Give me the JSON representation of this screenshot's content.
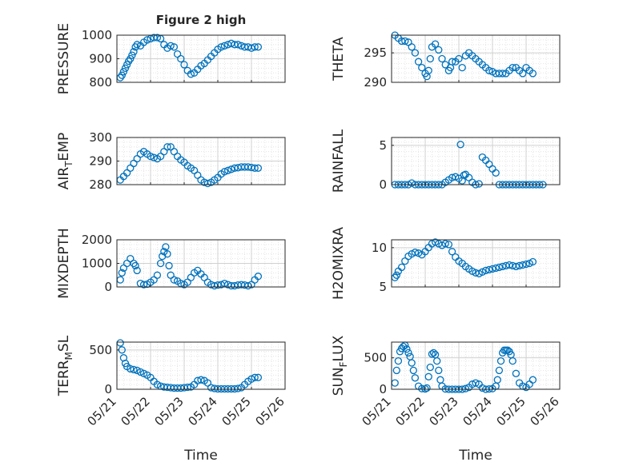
{
  "figure_title": "Figure 2 high",
  "xlabel": "Time",
  "xtick_labels": [
    "05/21",
    "05/22",
    "05/23",
    "05/24",
    "05/25",
    "05/26"
  ],
  "colors": {
    "marker": "#0072bd",
    "grid": "#dfdfdf",
    "axis": "#262626"
  },
  "chart_data": [
    {
      "type": "scatter",
      "ylabel": "PRESSURE",
      "ylim": [
        800,
        1000
      ],
      "yticks": [
        800,
        900,
        1000
      ],
      "xlim": [
        0,
        5
      ],
      "series": [
        {
          "x": [
            0.1,
            0.15,
            0.2,
            0.25,
            0.3,
            0.35,
            0.4,
            0.45,
            0.5,
            0.55,
            0.6,
            0.7,
            0.8,
            0.9,
            1.0,
            1.1,
            1.2,
            1.3,
            1.4,
            1.5,
            1.6,
            1.7,
            1.8,
            1.9,
            2.0,
            2.1,
            2.2,
            2.3,
            2.4,
            2.5,
            2.6,
            2.7,
            2.8,
            2.9,
            3.0,
            3.1,
            3.2,
            3.3,
            3.4,
            3.5,
            3.6,
            3.7,
            3.8,
            3.9,
            4.0,
            4.1,
            4.2
          ],
          "y": [
            820,
            830,
            845,
            860,
            875,
            890,
            900,
            915,
            930,
            950,
            960,
            955,
            970,
            980,
            985,
            990,
            990,
            985,
            960,
            945,
            955,
            950,
            920,
            900,
            875,
            850,
            835,
            840,
            855,
            870,
            880,
            895,
            910,
            925,
            940,
            950,
            955,
            960,
            965,
            960,
            960,
            955,
            950,
            950,
            945,
            950,
            950
          ]
        }
      ]
    },
    {
      "type": "scatter",
      "ylabel": "THETA",
      "ylim": [
        290,
        298
      ],
      "yticks": [
        290,
        295
      ],
      "xlim": [
        0,
        5
      ],
      "series": [
        {
          "x": [
            0.1,
            0.2,
            0.3,
            0.4,
            0.5,
            0.6,
            0.7,
            0.8,
            0.9,
            1.0,
            1.05,
            1.1,
            1.15,
            1.2,
            1.3,
            1.4,
            1.5,
            1.6,
            1.7,
            1.75,
            1.8,
            1.9,
            2.0,
            2.1,
            2.2,
            2.3,
            2.4,
            2.5,
            2.6,
            2.7,
            2.8,
            2.9,
            3.0,
            3.1,
            3.2,
            3.3,
            3.4,
            3.5,
            3.6,
            3.7,
            3.8,
            3.9,
            4.0,
            4.1,
            4.2
          ],
          "y": [
            298,
            297.5,
            297,
            297,
            296.8,
            296,
            295,
            293.5,
            292.5,
            291.5,
            291,
            292,
            294,
            296,
            296.5,
            295.5,
            294,
            293,
            292,
            292.5,
            293.5,
            293.5,
            294,
            292.5,
            294.5,
            295,
            294.5,
            294,
            293.5,
            293,
            292.5,
            292,
            291.8,
            291.5,
            291.5,
            291.5,
            291.5,
            292,
            292.5,
            292.5,
            292,
            291.5,
            292.5,
            292,
            291.5
          ]
        }
      ]
    },
    {
      "type": "scatter",
      "ylabel": "AIR_TEMP",
      "ylim": [
        280,
        300
      ],
      "yticks": [
        280,
        290,
        300
      ],
      "xlim": [
        0,
        5
      ],
      "series": [
        {
          "x": [
            0.1,
            0.2,
            0.3,
            0.4,
            0.5,
            0.6,
            0.7,
            0.8,
            0.9,
            1.0,
            1.1,
            1.2,
            1.3,
            1.4,
            1.5,
            1.6,
            1.7,
            1.8,
            1.9,
            2.0,
            2.1,
            2.2,
            2.3,
            2.4,
            2.5,
            2.6,
            2.7,
            2.8,
            2.9,
            3.0,
            3.1,
            3.2,
            3.3,
            3.4,
            3.5,
            3.6,
            3.7,
            3.8,
            3.9,
            4.0,
            4.1,
            4.2
          ],
          "y": [
            282,
            283.5,
            285,
            287,
            289,
            291,
            293,
            294,
            293,
            292,
            291.5,
            291,
            292,
            294,
            296,
            296,
            294,
            292,
            290.5,
            289.5,
            288,
            287,
            286,
            284,
            282,
            281,
            280.5,
            281,
            282,
            283,
            284.5,
            285.5,
            286,
            286.5,
            287,
            287.2,
            287.5,
            287.5,
            287.5,
            287.3,
            287,
            287
          ]
        }
      ]
    },
    {
      "type": "scatter",
      "ylabel": "RAINFALL",
      "ylim": [
        0,
        6
      ],
      "yticks": [
        0,
        5
      ],
      "xlim": [
        0,
        5
      ],
      "series": [
        {
          "x": [
            0.1,
            0.2,
            0.3,
            0.4,
            0.5,
            0.6,
            0.7,
            0.8,
            0.9,
            1.0,
            1.1,
            1.2,
            1.3,
            1.4,
            1.5,
            1.6,
            1.7,
            1.8,
            1.9,
            2.0,
            2.05,
            2.1,
            2.15,
            2.2,
            2.3,
            2.4,
            2.5,
            2.6,
            2.7,
            2.8,
            2.9,
            3.0,
            3.1,
            3.2,
            3.3,
            3.4,
            3.5,
            3.6,
            3.7,
            3.8,
            3.9,
            4.0,
            4.1,
            4.2,
            4.3,
            4.4,
            4.5
          ],
          "y": [
            0,
            0,
            0,
            0,
            0,
            0.2,
            0,
            0,
            0,
            0,
            0,
            0,
            0,
            0,
            0,
            0.3,
            0.6,
            0.9,
            1.0,
            0.8,
            5.1,
            0.5,
            1.2,
            1.3,
            0.9,
            0.3,
            0,
            0.1,
            3.5,
            3.1,
            2.6,
            2.0,
            1.5,
            0,
            0,
            0,
            0,
            0,
            0,
            0,
            0,
            0,
            0,
            0,
            0,
            0,
            0
          ]
        }
      ]
    },
    {
      "type": "scatter",
      "ylabel": "MIXDEPTH",
      "ylim": [
        0,
        2000
      ],
      "yticks": [
        0,
        1000,
        2000
      ],
      "xlim": [
        0,
        5
      ],
      "series": [
        {
          "x": [
            0.1,
            0.15,
            0.2,
            0.3,
            0.4,
            0.5,
            0.55,
            0.6,
            0.7,
            0.8,
            0.9,
            1.0,
            1.1,
            1.2,
            1.3,
            1.35,
            1.4,
            1.45,
            1.5,
            1.55,
            1.6,
            1.7,
            1.8,
            1.9,
            2.0,
            2.1,
            2.2,
            2.3,
            2.4,
            2.5,
            2.6,
            2.7,
            2.8,
            2.9,
            3.0,
            3.1,
            3.2,
            3.3,
            3.4,
            3.5,
            3.6,
            3.7,
            3.8,
            3.9,
            4.0,
            4.1,
            4.2
          ],
          "y": [
            300,
            600,
            800,
            1000,
            1200,
            1000,
            900,
            700,
            150,
            100,
            120,
            200,
            300,
            500,
            1000,
            1300,
            1500,
            1700,
            1400,
            900,
            500,
            300,
            250,
            150,
            100,
            200,
            400,
            600,
            700,
            550,
            400,
            200,
            100,
            50,
            80,
            100,
            150,
            100,
            50,
            50,
            80,
            100,
            80,
            50,
            100,
            300,
            450
          ]
        }
      ]
    },
    {
      "type": "scatter",
      "ylabel": "H2OMIXRA",
      "ylim": [
        5,
        11
      ],
      "yticks": [
        5,
        10
      ],
      "xlim": [
        0,
        5
      ],
      "series": [
        {
          "x": [
            0.1,
            0.15,
            0.2,
            0.3,
            0.4,
            0.5,
            0.6,
            0.7,
            0.8,
            0.9,
            1.0,
            1.1,
            1.2,
            1.3,
            1.4,
            1.5,
            1.6,
            1.7,
            1.8,
            1.9,
            2.0,
            2.1,
            2.2,
            2.3,
            2.4,
            2.5,
            2.6,
            2.7,
            2.8,
            2.9,
            3.0,
            3.1,
            3.2,
            3.3,
            3.4,
            3.5,
            3.6,
            3.7,
            3.8,
            3.9,
            4.0,
            4.1,
            4.2
          ],
          "y": [
            6.2,
            6.5,
            7.0,
            7.5,
            8.3,
            8.9,
            9.2,
            9.4,
            9.3,
            9.1,
            9.5,
            10.0,
            10.5,
            10.7,
            10.5,
            10.3,
            10.5,
            10.4,
            9.5,
            8.8,
            8.3,
            8.0,
            7.6,
            7.3,
            7.0,
            6.8,
            6.7,
            6.9,
            7.1,
            7.2,
            7.3,
            7.4,
            7.5,
            7.6,
            7.7,
            7.8,
            7.7,
            7.6,
            7.7,
            7.8,
            7.9,
            8.0,
            8.2
          ]
        }
      ]
    },
    {
      "type": "scatter",
      "ylabel": "TERR_MSL",
      "ylim": [
        0,
        600
      ],
      "yticks": [
        0,
        500
      ],
      "xlim": [
        0,
        5
      ],
      "series": [
        {
          "x": [
            0.1,
            0.15,
            0.2,
            0.25,
            0.3,
            0.4,
            0.5,
            0.6,
            0.7,
            0.8,
            0.9,
            1.0,
            1.1,
            1.2,
            1.3,
            1.4,
            1.5,
            1.6,
            1.7,
            1.8,
            1.9,
            2.0,
            2.1,
            2.2,
            2.3,
            2.4,
            2.5,
            2.6,
            2.7,
            2.8,
            2.9,
            3.0,
            3.1,
            3.2,
            3.3,
            3.4,
            3.5,
            3.6,
            3.7,
            3.8,
            3.9,
            4.0,
            4.1,
            4.2
          ],
          "y": [
            590,
            500,
            400,
            330,
            290,
            260,
            250,
            240,
            220,
            200,
            180,
            150,
            100,
            60,
            40,
            30,
            25,
            20,
            15,
            15,
            15,
            20,
            25,
            30,
            60,
            110,
            120,
            110,
            80,
            20,
            10,
            5,
            5,
            5,
            5,
            5,
            5,
            10,
            20,
            60,
            100,
            130,
            150,
            150
          ]
        }
      ]
    },
    {
      "type": "scatter",
      "ylabel": "SUN_FLUX",
      "ylim": [
        0,
        750
      ],
      "yticks": [
        0,
        500
      ],
      "xlim": [
        0,
        5
      ],
      "series": [
        {
          "x": [
            0.1,
            0.15,
            0.2,
            0.25,
            0.3,
            0.35,
            0.4,
            0.45,
            0.5,
            0.55,
            0.6,
            0.65,
            0.7,
            0.8,
            0.9,
            1.0,
            1.05,
            1.1,
            1.15,
            1.2,
            1.25,
            1.3,
            1.35,
            1.4,
            1.45,
            1.5,
            1.6,
            1.7,
            1.8,
            1.9,
            2.0,
            2.1,
            2.2,
            2.3,
            2.4,
            2.5,
            2.6,
            2.7,
            2.8,
            2.9,
            3.0,
            3.1,
            3.15,
            3.2,
            3.25,
            3.3,
            3.35,
            3.4,
            3.45,
            3.5,
            3.55,
            3.6,
            3.7,
            3.8,
            3.9,
            4.0,
            4.1,
            4.2
          ],
          "y": [
            100,
            300,
            450,
            600,
            650,
            680,
            700,
            640,
            580,
            520,
            420,
            300,
            180,
            50,
            10,
            5,
            20,
            200,
            350,
            560,
            580,
            550,
            450,
            300,
            150,
            50,
            5,
            0,
            0,
            0,
            0,
            0,
            10,
            30,
            80,
            100,
            80,
            20,
            0,
            5,
            10,
            50,
            150,
            300,
            450,
            580,
            620,
            620,
            620,
            600,
            550,
            450,
            250,
            100,
            50,
            30,
            80,
            150
          ]
        }
      ]
    }
  ]
}
